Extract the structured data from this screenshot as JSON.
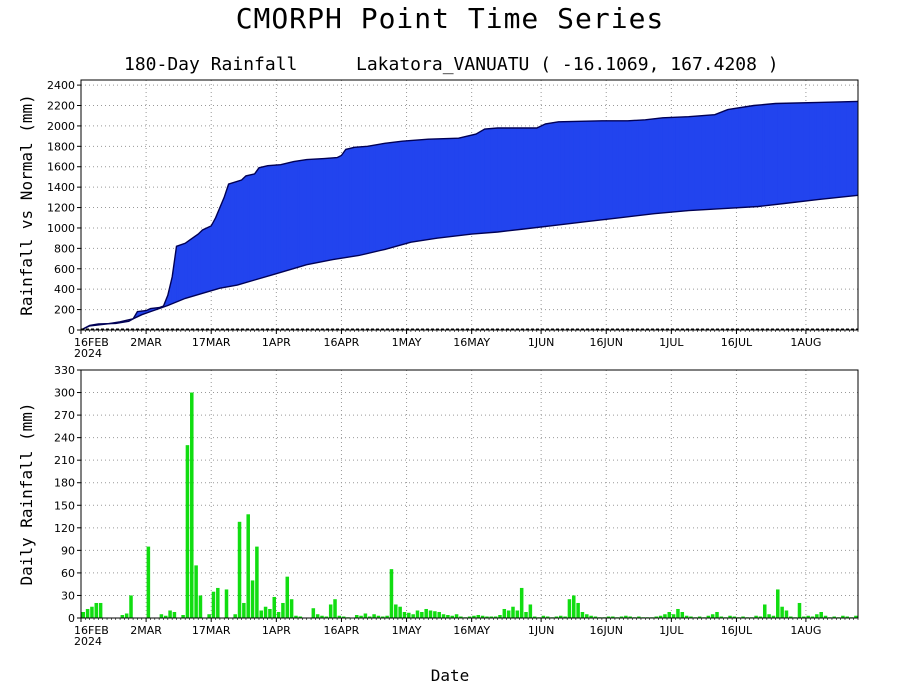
{
  "title": "CMORPH Point Time Series",
  "subtitle_left": "180-Day Rainfall",
  "subtitle_right": "Lakatora_VANUATU ( -16.1069, 167.4208 )",
  "xlabel": "Date",
  "colors": {
    "actual": "#2244ee",
    "deficit": "#f0a030",
    "daily": "#11dd11",
    "line": "#000055"
  },
  "x_ticks": [
    {
      "day": 0,
      "label": "16FEB",
      "sub": "2024"
    },
    {
      "day": 15,
      "label": "2MAR"
    },
    {
      "day": 30,
      "label": "17MAR"
    },
    {
      "day": 45,
      "label": "1APR"
    },
    {
      "day": 60,
      "label": "16APR"
    },
    {
      "day": 75,
      "label": "1MAY"
    },
    {
      "day": 90,
      "label": "16MAY"
    },
    {
      "day": 106,
      "label": "1JUN"
    },
    {
      "day": 121,
      "label": "16JUN"
    },
    {
      "day": 136,
      "label": "1JUL"
    },
    {
      "day": 151,
      "label": "16JUL"
    },
    {
      "day": 167,
      "label": "1AUG"
    }
  ],
  "chart_data": [
    {
      "type": "area",
      "ylabel": "Rainfall vs Normal (mm)",
      "x_start": "2024-02-16",
      "xlim": [
        0,
        179
      ],
      "ylim": [
        0,
        2450
      ],
      "yticks": [
        0,
        200,
        400,
        600,
        800,
        1000,
        1200,
        1400,
        1600,
        1800,
        2000,
        2200,
        2400
      ],
      "grid": true,
      "series": [
        {
          "values": [
            [
              0,
              0
            ],
            [
              2,
              45
            ],
            [
              4,
              60
            ],
            [
              8,
              65
            ],
            [
              11,
              85
            ],
            [
              12,
              110
            ],
            [
              13,
              180
            ],
            [
              15,
              190
            ],
            [
              16,
              210
            ],
            [
              18,
              220
            ],
            [
              19,
              235
            ],
            [
              20,
              340
            ],
            [
              21,
              520
            ],
            [
              22,
              820
            ],
            [
              24,
              850
            ],
            [
              25,
              880
            ],
            [
              27,
              940
            ],
            [
              28,
              980
            ],
            [
              30,
              1020
            ],
            [
              31,
              1100
            ],
            [
              33,
              1300
            ],
            [
              34,
              1430
            ],
            [
              37,
              1470
            ],
            [
              38,
              1510
            ],
            [
              40,
              1530
            ],
            [
              41,
              1590
            ],
            [
              43,
              1610
            ],
            [
              46,
              1620
            ],
            [
              49,
              1650
            ],
            [
              52,
              1670
            ],
            [
              56,
              1680
            ],
            [
              59,
              1690
            ],
            [
              60,
              1710
            ],
            [
              61,
              1770
            ],
            [
              63,
              1790
            ],
            [
              66,
              1800
            ],
            [
              70,
              1830
            ],
            [
              74,
              1850
            ],
            [
              80,
              1870
            ],
            [
              87,
              1880
            ],
            [
              91,
              1920
            ],
            [
              93,
              1970
            ],
            [
              96,
              1980
            ],
            [
              105,
              1980
            ],
            [
              107,
              2020
            ],
            [
              110,
              2040
            ],
            [
              120,
              2050
            ],
            [
              126,
              2050
            ],
            [
              130,
              2060
            ],
            [
              134,
              2080
            ],
            [
              140,
              2090
            ],
            [
              146,
              2110
            ],
            [
              149,
              2160
            ],
            [
              155,
              2200
            ],
            [
              160,
              2220
            ],
            [
              170,
              2230
            ],
            [
              179,
              2240
            ]
          ]
        },
        {
          "values": [
            [
              0,
              0
            ],
            [
              2,
              40
            ],
            [
              6,
              60
            ],
            [
              9,
              80
            ],
            [
              12,
              110
            ],
            [
              14,
              150
            ],
            [
              16,
              180
            ],
            [
              18,
              210
            ],
            [
              20,
              240
            ],
            [
              24,
              310
            ],
            [
              28,
              360
            ],
            [
              32,
              410
            ],
            [
              36,
              440
            ],
            [
              40,
              490
            ],
            [
              44,
              540
            ],
            [
              48,
              590
            ],
            [
              52,
              640
            ],
            [
              58,
              690
            ],
            [
              64,
              730
            ],
            [
              70,
              790
            ],
            [
              76,
              860
            ],
            [
              82,
              900
            ],
            [
              90,
              940
            ],
            [
              96,
              960
            ],
            [
              102,
              990
            ],
            [
              110,
              1030
            ],
            [
              116,
              1060
            ],
            [
              124,
              1100
            ],
            [
              132,
              1140
            ],
            [
              140,
              1170
            ],
            [
              148,
              1190
            ],
            [
              156,
              1210
            ],
            [
              162,
              1240
            ],
            [
              170,
              1280
            ],
            [
              179,
              1320
            ]
          ]
        }
      ]
    },
    {
      "type": "bar",
      "ylabel": "Daily Rainfall (mm)",
      "x_start": "2024-02-16",
      "xlim": [
        0,
        179
      ],
      "ylim": [
        0,
        330
      ],
      "yticks": [
        0,
        30,
        60,
        90,
        120,
        150,
        180,
        210,
        240,
        270,
        300,
        330
      ],
      "grid": true,
      "values": [
        8,
        12,
        15,
        20,
        20,
        0,
        0,
        0,
        0,
        4,
        6,
        30,
        0,
        0,
        0,
        95,
        0,
        0,
        5,
        3,
        10,
        8,
        0,
        4,
        230,
        300,
        70,
        30,
        0,
        5,
        35,
        40,
        0,
        38,
        0,
        5,
        128,
        20,
        138,
        50,
        95,
        10,
        15,
        12,
        28,
        8,
        20,
        55,
        25,
        3,
        2,
        0,
        0,
        13,
        5,
        3,
        2,
        18,
        25,
        3,
        2,
        1,
        0,
        4,
        3,
        6,
        2,
        5,
        3,
        2,
        3,
        65,
        18,
        15,
        8,
        7,
        5,
        10,
        8,
        12,
        10,
        9,
        8,
        5,
        4,
        3,
        5,
        2,
        1,
        2,
        3,
        4,
        3,
        2,
        2,
        2,
        4,
        12,
        10,
        15,
        10,
        40,
        8,
        18,
        2,
        1,
        3,
        2,
        1,
        2,
        3,
        2,
        25,
        30,
        20,
        8,
        5,
        3,
        2,
        1,
        1,
        2,
        2,
        1,
        2,
        3,
        2,
        1,
        2,
        1,
        1,
        1,
        2,
        3,
        5,
        8,
        5,
        12,
        8,
        3,
        2,
        1,
        2,
        1,
        3,
        5,
        8,
        2,
        1,
        3,
        2,
        1,
        2,
        1,
        1,
        3,
        2,
        18,
        5,
        3,
        38,
        15,
        10,
        2,
        1,
        20,
        2,
        3,
        2,
        5,
        8,
        3,
        1,
        2,
        1,
        3,
        2,
        1,
        3
      ]
    }
  ]
}
